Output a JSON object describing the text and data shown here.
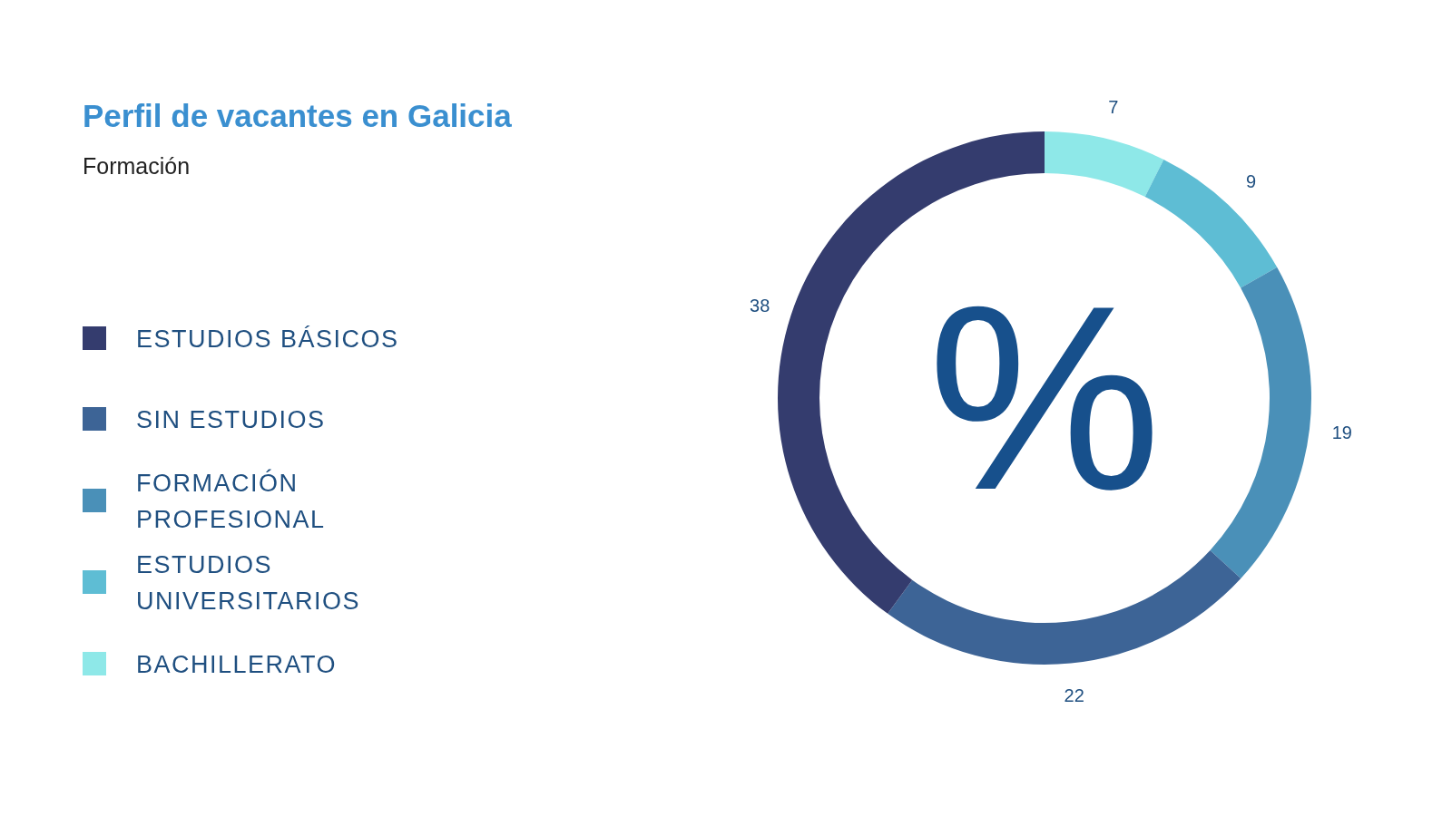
{
  "chart_data": {
    "type": "donut",
    "title": "Perfil de vacantes en Galicia",
    "subtitle": "Formación",
    "categories": [
      "ESTUDIOS BÁSICOS",
      "SIN ESTUDIOS",
      "FORMACIÓN PROFESIONAL",
      "ESTUDIOS UNIVERSITARIOS",
      "BACHILLERATO"
    ],
    "values": [
      38,
      22,
      19,
      9,
      7
    ],
    "colors": [
      "#343c6e",
      "#3d6496",
      "#4a90b8",
      "#5ebdd4",
      "#8ee8e8"
    ],
    "data_labels": true,
    "legend": "left",
    "annotations": [
      "%"
    ]
  }
}
